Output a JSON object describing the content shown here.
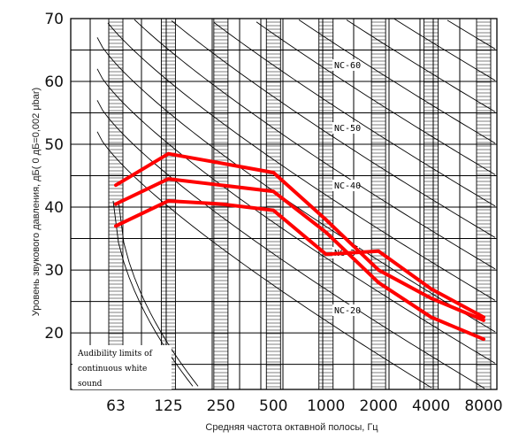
{
  "chart_data": {
    "type": "line",
    "title": "",
    "xlabel": "Средняя частота октавной полосы, Гц",
    "ylabel": "Уровень звукового давления, дБ( 0 дБ=0,002 μbar)",
    "x_categories": [
      "63",
      "125",
      "250",
      "500",
      "1000",
      "2000",
      "4000",
      "8000"
    ],
    "y_ticks": [
      "20",
      "30",
      "40",
      "50",
      "60",
      "70"
    ],
    "ylim": [
      11,
      70
    ],
    "grid": true,
    "nc_curve_labels": [
      "NC-60",
      "NC-50",
      "NC-40",
      "NC-3",
      "NC-20"
    ],
    "annotation_lines": [
      "Audibility limits of",
      "continuous white",
      "sound"
    ],
    "series": [
      {
        "values": [
          43.5,
          48.5,
          47.0,
          45.5,
          38.0,
          30.0,
          25.5,
          22.0
        ]
      },
      {
        "values": [
          40.5,
          44.5,
          43.5,
          42.5,
          36.0,
          28.0,
          22.5,
          19.0
        ]
      },
      {
        "values": [
          37.0,
          41.0,
          40.5,
          39.5,
          32.5,
          33.0,
          27.0,
          22.5
        ]
      }
    ],
    "series_color": "#ff0000"
  }
}
